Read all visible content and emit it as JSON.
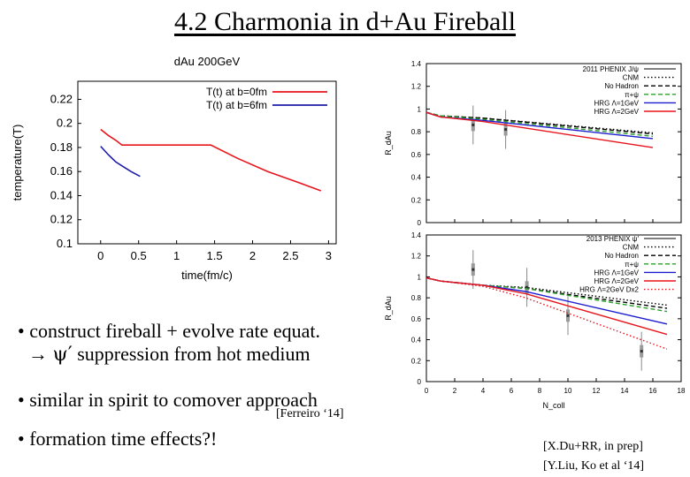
{
  "slide": {
    "title": "4.2 Charmonia in d+Au Fireball",
    "bullets": {
      "b1_line1": "• construct fireball + evolve rate equat.",
      "b1_arrow": "→ ",
      "b1_psi": "ψ′",
      "b1_rest": " suppression from hot medium",
      "b2": "• similar in spirit to comover approach",
      "b2_cite": "[Ferreiro ‘14]",
      "b3": "• formation time effects?!"
    },
    "refs": [
      "[X.Du+RR, in prep]",
      "[Y.Liu, Ko et al ‘14]"
    ]
  },
  "chart_data": [
    {
      "type": "line",
      "title": "dAu 200GeV",
      "xlabel": "time(fm/c)",
      "ylabel": "temperature(T)",
      "xlim": [
        -0.3,
        3.1
      ],
      "ylim": [
        0.1,
        0.235
      ],
      "xticks": [
        "0",
        "0.5",
        "1",
        "1.5",
        "2",
        "2.5",
        "3"
      ],
      "yticks": [
        "0.1",
        "0.12",
        "0.14",
        "0.16",
        "0.18",
        "0.2",
        "0.22"
      ],
      "grid": false,
      "legend": "top-right",
      "colors": {
        "b0": "#e8141c",
        "b6": "#1c1ca8"
      },
      "series": [
        {
          "name": "T(t) at b=0fm",
          "x": [
            0,
            0.1,
            0.2,
            0.28,
            1.45,
            1.8,
            2.2,
            2.6,
            2.9
          ],
          "y": [
            0.195,
            0.19,
            0.186,
            0.182,
            0.182,
            0.171,
            0.16,
            0.151,
            0.144
          ]
        },
        {
          "name": "T(t) at b=6fm",
          "x": [
            0,
            0.1,
            0.2,
            0.3,
            0.4,
            0.52
          ],
          "y": [
            0.181,
            0.174,
            0.168,
            0.164,
            0.16,
            0.156
          ]
        }
      ]
    },
    {
      "type": "line",
      "ylabel": "R_dAu",
      "xlim": [
        0,
        18
      ],
      "ylim": [
        0,
        1.4
      ],
      "yticks": [
        "0",
        "0.2",
        "0.4",
        "0.6",
        "0.8",
        "1",
        "1.2",
        "1.4"
      ],
      "legend": "top-right",
      "series": [
        {
          "name": "2011 PHENIX J/ψ",
          "color": "#000000",
          "style": "data",
          "x": [
            3.3,
            5.6
          ],
          "y": [
            0.86,
            0.82
          ]
        },
        {
          "name": "CNM",
          "color": "#000000",
          "style": "dotted",
          "x": [
            0,
            1,
            4,
            16
          ],
          "y": [
            0.97,
            0.94,
            0.92,
            0.79
          ]
        },
        {
          "name": "No Hadron",
          "color": "#000000",
          "style": "dashed",
          "x": [
            0,
            1,
            4,
            16
          ],
          "y": [
            0.97,
            0.94,
            0.92,
            0.78
          ]
        },
        {
          "name": "π+ψ",
          "color": "#2aa02a",
          "style": "dashed",
          "x": [
            0,
            1,
            4,
            16
          ],
          "y": [
            0.97,
            0.94,
            0.91,
            0.76
          ]
        },
        {
          "name": "HRG Λ=1GeV",
          "color": "#1c1cd0",
          "style": "solid",
          "x": [
            0,
            1,
            4,
            16
          ],
          "y": [
            0.97,
            0.93,
            0.9,
            0.74
          ]
        },
        {
          "name": "HRG Λ=2GeV",
          "color": "#e8141c",
          "style": "solid",
          "x": [
            0,
            1,
            4,
            16
          ],
          "y": [
            0.97,
            0.93,
            0.89,
            0.66
          ]
        }
      ]
    },
    {
      "type": "line",
      "xlabel": "N_coll",
      "ylabel": "R_dAu",
      "xlim": [
        0,
        18
      ],
      "ylim": [
        0,
        1.4
      ],
      "xticks": [
        "0",
        "2",
        "4",
        "6",
        "8",
        "10",
        "12",
        "14",
        "16",
        "18"
      ],
      "yticks": [
        "0",
        "0.2",
        "0.4",
        "0.6",
        "0.8",
        "1",
        "1.2",
        "1.4"
      ],
      "legend": "top-right",
      "series": [
        {
          "name": "2013 PHENIX ψ′",
          "color": "#000000",
          "style": "data",
          "x": [
            3.3,
            7.1,
            10,
            15.2
          ],
          "y": [
            1.07,
            0.9,
            0.63,
            0.29
          ]
        },
        {
          "name": "CNM",
          "color": "#000000",
          "style": "dotted",
          "x": [
            0,
            1,
            4,
            7,
            17
          ],
          "y": [
            0.99,
            0.96,
            0.92,
            0.9,
            0.73
          ]
        },
        {
          "name": "No Hadron",
          "color": "#000000",
          "style": "dashed",
          "x": [
            0,
            1,
            4,
            7,
            17
          ],
          "y": [
            0.99,
            0.96,
            0.92,
            0.89,
            0.7
          ]
        },
        {
          "name": "π+ψ",
          "color": "#2aa02a",
          "style": "dashed",
          "x": [
            0,
            1,
            4,
            7,
            17
          ],
          "y": [
            0.99,
            0.96,
            0.92,
            0.89,
            0.67
          ]
        },
        {
          "name": "HRG Λ=1GeV",
          "color": "#1c1cd0",
          "style": "solid",
          "x": [
            0,
            1,
            4,
            7,
            17
          ],
          "y": [
            0.99,
            0.96,
            0.92,
            0.86,
            0.55
          ]
        },
        {
          "name": "HRG Λ=2GeV",
          "color": "#e8141c",
          "style": "solid",
          "x": [
            0,
            1,
            4,
            7,
            17
          ],
          "y": [
            0.99,
            0.96,
            0.92,
            0.84,
            0.45
          ]
        },
        {
          "name": "HRG Λ=2GeV Dx2",
          "color": "#e8141c",
          "style": "dotted",
          "x": [
            0,
            1,
            4,
            7,
            17
          ],
          "y": [
            0.99,
            0.96,
            0.91,
            0.8,
            0.31
          ]
        }
      ]
    }
  ]
}
